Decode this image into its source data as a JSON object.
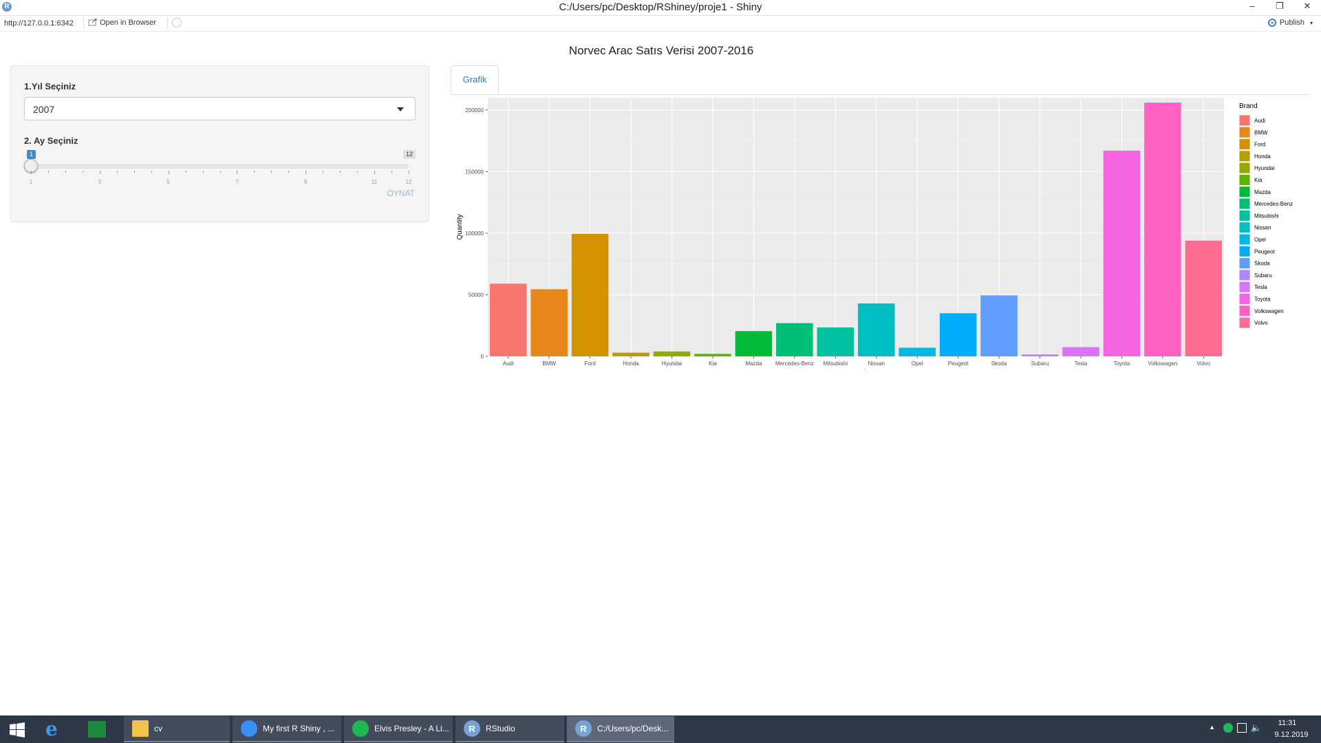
{
  "window": {
    "title": "C:/Users/pc/Desktop/RShiney/proje1 - Shiny",
    "app_icon": "R",
    "minimize": "–",
    "restore": "❐",
    "close": "✕"
  },
  "toolbar": {
    "url": "http://127.0.0.1:6342",
    "open_browser": "Open in Browser",
    "publish": "Publish"
  },
  "page": {
    "title": "Norvec Arac Satıs Verisi 2007-2016"
  },
  "sidebar": {
    "year_label": "1.Yıl Seçiniz",
    "year_value": "2007",
    "month_label": "2. Ay Seçiniz",
    "slider": {
      "min": 1,
      "max": 12,
      "value": 1,
      "value_label": "1",
      "max_label": "12",
      "tick_labels": [
        "1",
        "3",
        "5",
        "7",
        "9",
        "11",
        "12"
      ]
    },
    "play_label": "OYNAT"
  },
  "tabs": [
    {
      "label": "Grafik"
    }
  ],
  "chart_data": {
    "type": "bar",
    "xlabel": "Brand",
    "ylabel": "Quantity",
    "legend_title": "Brand",
    "legend_position": "right",
    "grid": true,
    "ylim": [
      0,
      210000
    ],
    "yticks": [
      0,
      50000,
      100000,
      150000,
      200000
    ],
    "categories": [
      "Audi",
      "BMW",
      "Ford",
      "Honda",
      "Hyundai",
      "Kia",
      "Mazda",
      "Mercedes-Benz",
      "Mitsubishi",
      "Nissan",
      "Opel",
      "Peugeot",
      "Skoda",
      "Subaru",
      "Tesla",
      "Toyota",
      "Volkswagen",
      "Volvo"
    ],
    "values": [
      59000,
      54500,
      99500,
      3000,
      4000,
      2000,
      20500,
      27000,
      23500,
      43000,
      7000,
      35000,
      49500,
      1500,
      7500,
      167000,
      206000,
      94000
    ],
    "colors": [
      "#F8766D",
      "#E7861B",
      "#D39200",
      "#B79F00",
      "#93AA00",
      "#5EB300",
      "#00BA38",
      "#00BF74",
      "#00C19F",
      "#00BFC4",
      "#00B9E3",
      "#00ADFA",
      "#619CFF",
      "#AE87FF",
      "#DB72FB",
      "#F564E3",
      "#FF61C3",
      "#FF6C91"
    ]
  },
  "taskbar": {
    "items": [
      {
        "label": "cv",
        "icon": "folder-icon",
        "color": "#f2c24b"
      },
      {
        "label": "My first R Shiny , ...",
        "icon": "chrome-icon",
        "color": "#3b8ef3"
      },
      {
        "label": "Elvis Presley - A Li...",
        "icon": "spotify-icon",
        "color": "#1db954"
      },
      {
        "label": "RStudio",
        "icon": "r-icon",
        "color": "#75a3d4"
      },
      {
        "label": "C:/Users/pc/Desk...",
        "icon": "r-icon",
        "color": "#75a3d4"
      }
    ],
    "time": "11:31",
    "date": "9.12.2019"
  }
}
